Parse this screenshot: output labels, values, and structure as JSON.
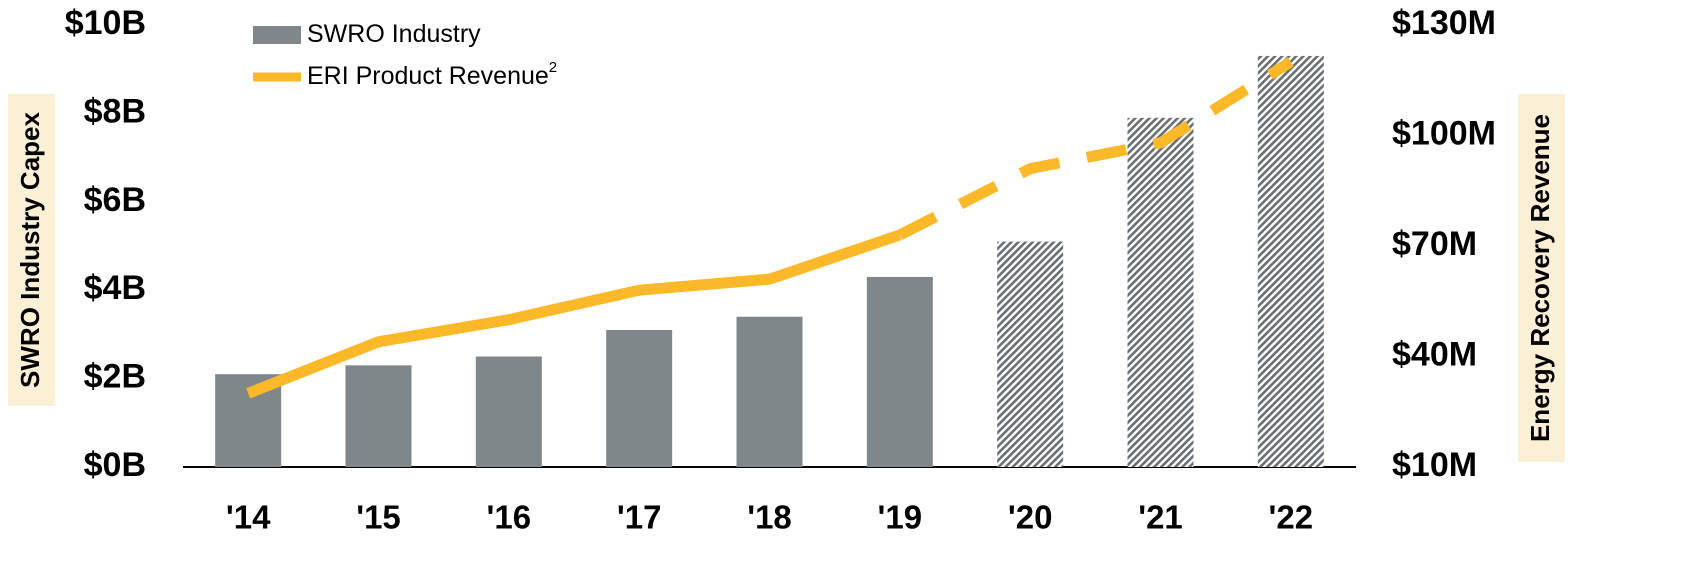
{
  "chart_data": {
    "type": "bar_line",
    "categories": [
      "'14",
      "'15",
      "'16",
      "'17",
      "'18",
      "'19",
      "'20",
      "'21",
      "'22"
    ],
    "projected": [
      false,
      false,
      false,
      false,
      false,
      false,
      true,
      true,
      true
    ],
    "ylabel": "SWRO Industry Capex",
    "y2label": "Energy Recovery Revenue",
    "ylim": [
      0,
      10
    ],
    "yticks": [
      {
        "value": 0,
        "label": "$0B"
      },
      {
        "value": 2,
        "label": "$2B"
      },
      {
        "value": 4,
        "label": "$4B"
      },
      {
        "value": 6,
        "label": "$6B"
      },
      {
        "value": 8,
        "label": "$8B"
      },
      {
        "value": 10,
        "label": "$10B"
      }
    ],
    "y2lim": [
      10,
      130
    ],
    "y2ticks": [
      {
        "value": 10,
        "label": "$10M"
      },
      {
        "value": 40,
        "label": "$40M"
      },
      {
        "value": 70,
        "label": "$70M"
      },
      {
        "value": 100,
        "label": "$100M"
      },
      {
        "value": 130,
        "label": "$130M"
      }
    ],
    "series": [
      {
        "name": "SWRO Industry",
        "type": "bar",
        "color": "#7f878b",
        "values": [
          2.1,
          2.3,
          2.5,
          3.1,
          3.4,
          4.3,
          5.1,
          7.9,
          9.3
        ]
      },
      {
        "name": "ERI Product Revenue",
        "name_superscript": "2",
        "type": "line",
        "axis": "y2",
        "color": "#fbb829",
        "values": [
          30,
          44,
          50,
          58,
          61,
          73,
          91,
          98,
          120
        ]
      }
    ]
  }
}
